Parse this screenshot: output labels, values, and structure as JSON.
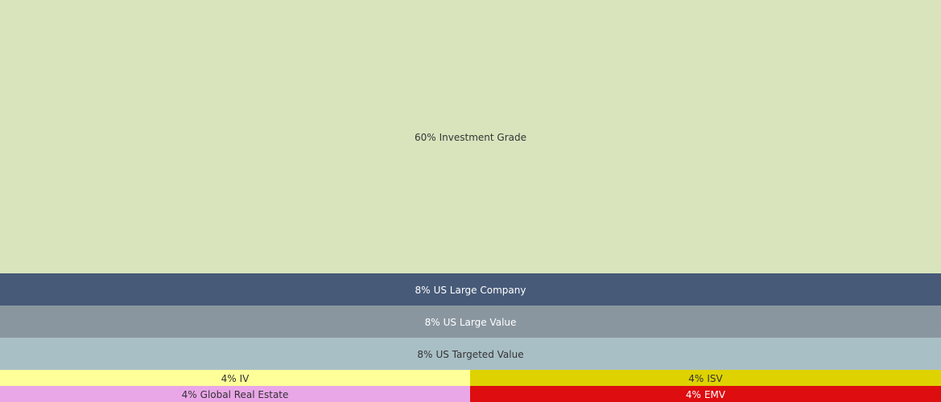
{
  "chart_data": {
    "type": "treemap",
    "categories": [
      "Investment Grade",
      "US Large Company",
      "US Large Value",
      "US Targeted Value",
      "IV",
      "ISV",
      "Global Real Estate",
      "EMV"
    ],
    "values": [
      60,
      8,
      8,
      8,
      4,
      4,
      4,
      4
    ],
    "value_labels": [
      "60%",
      "8%",
      "8%",
      "8%",
      "4%",
      "4%",
      "4%",
      "4%"
    ],
    "colors": [
      "#d9e4bd",
      "#475a78",
      "#8a969f",
      "#a9bfc6",
      "#ffff99",
      "#ded300",
      "#eaa7e8",
      "#dd0d10"
    ],
    "label_colors": [
      "#333333",
      "#ffffff",
      "#ffffff",
      "#333333",
      "#333333",
      "#333333",
      "#333333",
      "#ffffff"
    ]
  }
}
